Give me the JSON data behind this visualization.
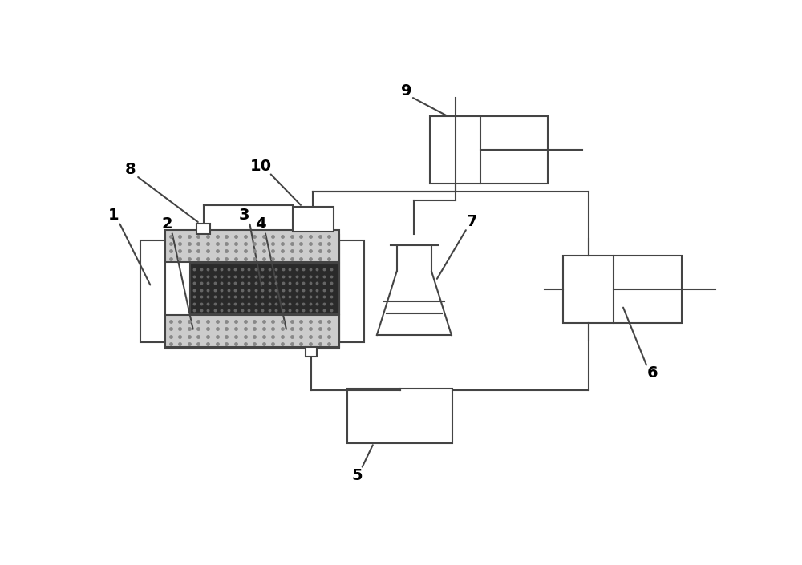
{
  "bg": "#ffffff",
  "lc": "#444444",
  "lw": 1.5,
  "fs": 14,
  "dot_fc": "#cccccc",
  "dot_ec": "#444444",
  "dot_color": "#888888",
  "core_fc": "#2a2a2a",
  "core_dot": "#666666"
}
